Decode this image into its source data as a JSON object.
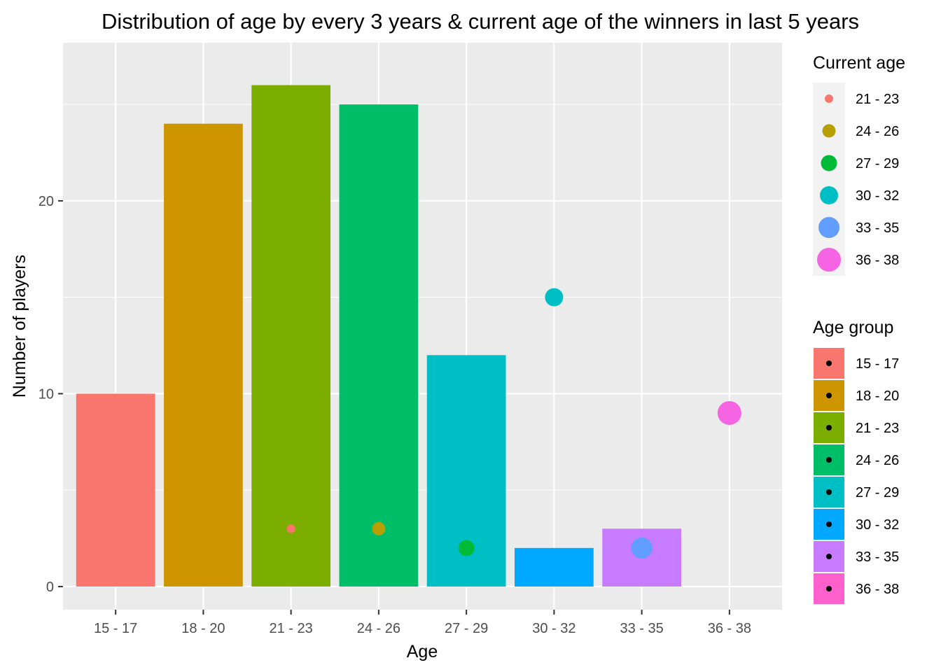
{
  "chart_data": {
    "type": "bar",
    "title": "Distribution of age by every 3 years & current age of the winners in last 5 years",
    "xlabel": "Age",
    "ylabel": "Number of players",
    "categories": [
      "15 - 17",
      "18 - 20",
      "21 - 23",
      "24 - 26",
      "27 - 29",
      "30 - 32",
      "33 - 35",
      "36 - 38"
    ],
    "ylim": [
      -1.2,
      28.2
    ],
    "yticks": [
      0,
      10,
      20
    ],
    "grid": true,
    "legend_position": "right",
    "bars": {
      "name": "Age group",
      "values": [
        10,
        24,
        26,
        25,
        12,
        2,
        3,
        null
      ],
      "colors": [
        "#F8766D",
        "#CD9600",
        "#7CAE00",
        "#00BE67",
        "#00BFC4",
        "#00A9FF",
        "#C77CFF",
        "#FF61CC"
      ]
    },
    "points": {
      "name": "Current age",
      "data": [
        {
          "x": "21 - 23",
          "y": 3,
          "label": "21 - 23",
          "color": "#F8766D"
        },
        {
          "x": "24 - 26",
          "y": 3,
          "label": "24 - 26",
          "color": "#B79F00"
        },
        {
          "x": "27 - 29",
          "y": 2,
          "label": "27 - 29",
          "color": "#00BA38"
        },
        {
          "x": "30 - 32",
          "y": 15,
          "label": "30 - 32",
          "color": "#00BFC4"
        },
        {
          "x": "33 - 35",
          "y": 2,
          "label": "33 - 35",
          "color": "#619CFF"
        },
        {
          "x": "36 - 38",
          "y": 9,
          "label": "36 - 38",
          "color": "#F564E3"
        }
      ]
    },
    "legends": [
      {
        "title": "Current age",
        "type": "point",
        "items": [
          {
            "label": "21 - 23",
            "color": "#F8766D"
          },
          {
            "label": "24 - 26",
            "color": "#B79F00"
          },
          {
            "label": "27 - 29",
            "color": "#00BA38"
          },
          {
            "label": "30 - 32",
            "color": "#00BFC4"
          },
          {
            "label": "33 - 35",
            "color": "#619CFF"
          },
          {
            "label": "36 - 38",
            "color": "#F564E3"
          }
        ]
      },
      {
        "title": "Age group",
        "type": "fill",
        "items": [
          {
            "label": "15 - 17",
            "color": "#F8766D"
          },
          {
            "label": "18 - 20",
            "color": "#CD9600"
          },
          {
            "label": "21 - 23",
            "color": "#7CAE00"
          },
          {
            "label": "24 - 26",
            "color": "#00BE67"
          },
          {
            "label": "27 - 29",
            "color": "#00BFC4"
          },
          {
            "label": "30 - 32",
            "color": "#00A9FF"
          },
          {
            "label": "33 - 35",
            "color": "#C77CFF"
          },
          {
            "label": "36 - 38",
            "color": "#FF61CC"
          }
        ]
      }
    ]
  }
}
